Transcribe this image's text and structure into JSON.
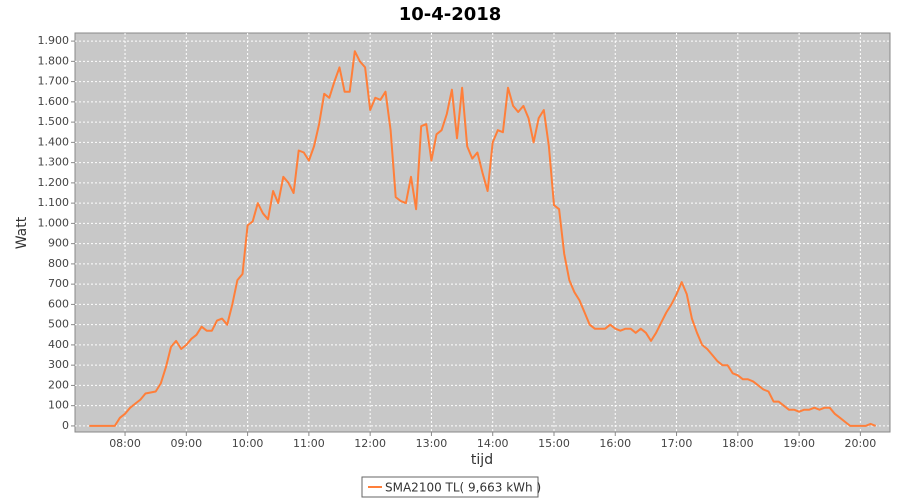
{
  "chart_data": {
    "type": "line",
    "title": "10-4-2018",
    "x_label": "tijd",
    "y_label": "Watt",
    "x": [
      "07:25",
      "07:30",
      "07:35",
      "07:40",
      "07:45",
      "07:50",
      "07:55",
      "08:00",
      "08:05",
      "08:10",
      "08:15",
      "08:20",
      "08:25",
      "08:30",
      "08:35",
      "08:40",
      "08:45",
      "08:50",
      "08:55",
      "09:00",
      "09:05",
      "09:10",
      "09:15",
      "09:20",
      "09:25",
      "09:30",
      "09:35",
      "09:40",
      "09:45",
      "09:50",
      "09:55",
      "10:00",
      "10:05",
      "10:10",
      "10:15",
      "10:20",
      "10:25",
      "10:30",
      "10:35",
      "10:40",
      "10:45",
      "10:50",
      "10:55",
      "11:00",
      "11:05",
      "11:10",
      "11:15",
      "11:20",
      "11:25",
      "11:30",
      "11:35",
      "11:40",
      "11:45",
      "11:50",
      "11:55",
      "12:00",
      "12:05",
      "12:10",
      "12:15",
      "12:20",
      "12:25",
      "12:30",
      "12:35",
      "12:40",
      "12:45",
      "12:50",
      "12:55",
      "13:00",
      "13:05",
      "13:10",
      "13:15",
      "13:20",
      "13:25",
      "13:30",
      "13:35",
      "13:40",
      "13:45",
      "13:50",
      "13:55",
      "14:00",
      "14:05",
      "14:10",
      "14:15",
      "14:20",
      "14:25",
      "14:30",
      "14:35",
      "14:40",
      "14:45",
      "14:50",
      "14:55",
      "15:00",
      "15:05",
      "15:10",
      "15:15",
      "15:20",
      "15:25",
      "15:30",
      "15:35",
      "15:40",
      "15:45",
      "15:50",
      "15:55",
      "16:00",
      "16:05",
      "16:10",
      "16:15",
      "16:20",
      "16:25",
      "16:30",
      "16:35",
      "16:40",
      "16:45",
      "16:50",
      "16:55",
      "17:00",
      "17:05",
      "17:10",
      "17:15",
      "17:20",
      "17:25",
      "17:30",
      "17:35",
      "17:40",
      "17:45",
      "17:50",
      "17:55",
      "18:00",
      "18:05",
      "18:10",
      "18:15",
      "18:20",
      "18:25",
      "18:30",
      "18:35",
      "18:40",
      "18:45",
      "18:50",
      "18:55",
      "19:00",
      "19:05",
      "19:10",
      "19:15",
      "19:20",
      "19:25",
      "19:30",
      "19:35",
      "19:40",
      "19:45",
      "19:50",
      "19:55",
      "20:00",
      "20:05",
      "20:10",
      "20:15"
    ],
    "series": [
      {
        "name": "SMA2100 TL( 9,663 kWh )",
        "color": "#ff7f3a",
        "values": [
          0,
          0,
          0,
          0,
          0,
          0,
          40,
          60,
          90,
          110,
          130,
          160,
          165,
          170,
          210,
          290,
          390,
          420,
          380,
          400,
          430,
          450,
          490,
          470,
          470,
          520,
          530,
          500,
          600,
          720,
          750,
          990,
          1010,
          1100,
          1050,
          1020,
          1160,
          1100,
          1230,
          1200,
          1150,
          1360,
          1350,
          1310,
          1380,
          1490,
          1640,
          1620,
          1700,
          1770,
          1650,
          1650,
          1850,
          1800,
          1770,
          1560,
          1620,
          1610,
          1650,
          1460,
          1130,
          1110,
          1100,
          1230,
          1070,
          1480,
          1490,
          1310,
          1440,
          1460,
          1540,
          1660,
          1420,
          1670,
          1380,
          1320,
          1350,
          1250,
          1160,
          1400,
          1460,
          1450,
          1670,
          1580,
          1550,
          1580,
          1520,
          1400,
          1520,
          1560,
          1380,
          1090,
          1070,
          850,
          720,
          660,
          620,
          560,
          500,
          480,
          480,
          480,
          500,
          480,
          470,
          480,
          480,
          460,
          480,
          460,
          420,
          460,
          510,
          560,
          600,
          650,
          710,
          650,
          530,
          460,
          400,
          380,
          350,
          320,
          300,
          300,
          260,
          250,
          230,
          230,
          220,
          200,
          180,
          170,
          120,
          120,
          100,
          80,
          80,
          70,
          80,
          80,
          90,
          80,
          90,
          90,
          60,
          40,
          20,
          0,
          0,
          0,
          0,
          10,
          0
        ]
      }
    ],
    "xlim": [
      "07:11",
      "20:29"
    ],
    "xticks": [
      "08:00",
      "09:00",
      "10:00",
      "11:00",
      "12:00",
      "13:00",
      "14:00",
      "15:00",
      "16:00",
      "17:00",
      "18:00",
      "19:00",
      "20:00"
    ],
    "ylim": [
      -30,
      1940
    ],
    "yticks": [
      0,
      100,
      200,
      300,
      400,
      500,
      600,
      700,
      800,
      900,
      {
        "value": 1000,
        "label": "1.000"
      },
      {
        "value": 1100,
        "label": "1.100"
      },
      {
        "value": 1200,
        "label": "1.200"
      },
      {
        "value": 1300,
        "label": "1.300"
      },
      {
        "value": 1400,
        "label": "1.400"
      },
      {
        "value": 1500,
        "label": "1.500"
      },
      {
        "value": 1600,
        "label": "1.600"
      },
      {
        "value": 1700,
        "label": "1.700"
      },
      {
        "value": 1800,
        "label": "1.800"
      },
      {
        "value": 1900,
        "label": "1.900"
      }
    ],
    "grid": true,
    "legend": "bottom"
  }
}
